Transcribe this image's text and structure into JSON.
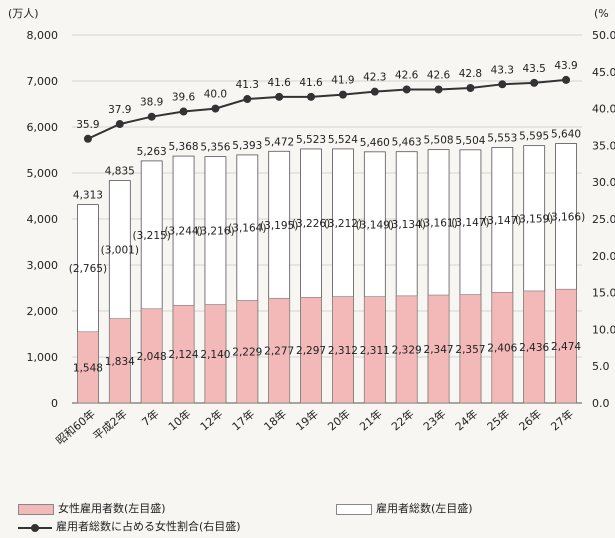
{
  "chart_data": {
    "type": "bar+line",
    "title": "",
    "y_left_unit": "(万人)",
    "y_right_unit": "(%",
    "y_left_ticks": [
      "0",
      "1,000",
      "2,000",
      "3,000",
      "4,000",
      "5,000",
      "6,000",
      "7,000",
      "8,000"
    ],
    "y_right_ticks": [
      "0.0",
      "5.0",
      "10.0",
      "15.0",
      "20.0",
      "25.0",
      "30.0",
      "35.0",
      "40.0",
      "45.0",
      "50.0"
    ],
    "ylim_left": [
      0,
      8000
    ],
    "ylim_right": [
      0,
      50
    ],
    "categories": [
      "昭和60年",
      "平成2年",
      "7年",
      "10年",
      "12年",
      "17年",
      "18年",
      "19年",
      "20年",
      "21年",
      "22年",
      "23年",
      "24年",
      "25年",
      "26年",
      "27年"
    ],
    "series": [
      {
        "name": "女性雇用者数(左目盛)",
        "kind": "bar",
        "color": "#f3b9b8",
        "values": [
          1548,
          1834,
          2048,
          2124,
          2140,
          2229,
          2277,
          2297,
          2312,
          2311,
          2329,
          2347,
          2357,
          2406,
          2436,
          2474
        ],
        "labels": [
          "1,548",
          "1,834",
          "2,048",
          "2,124",
          "2,140",
          "2,229",
          "2,277",
          "2,297",
          "2,312",
          "2,311",
          "2,329",
          "2,347",
          "2,357",
          "2,406",
          "2,436",
          "2,474"
        ]
      },
      {
        "name": "雇用者総数(左目盛)",
        "kind": "bar",
        "color": "#ffffff",
        "values": [
          4313,
          4835,
          5263,
          5368,
          5356,
          5393,
          5472,
          5523,
          5524,
          5460,
          5463,
          5508,
          5504,
          5553,
          5595,
          5640
        ],
        "labels": [
          "4,313",
          "4,835",
          "5,263",
          "5,368",
          "5,356",
          "5,393",
          "5,472",
          "5,523",
          "5,524",
          "5,460",
          "5,463",
          "5,508",
          "5,504",
          "5,553",
          "5,595",
          "5,640"
        ]
      },
      {
        "name": "雇用者総数に占める女性割合(右目盛)",
        "kind": "line",
        "color": "#333333",
        "values": [
          35.9,
          37.9,
          38.9,
          39.6,
          40.0,
          41.3,
          41.6,
          41.6,
          41.9,
          42.3,
          42.6,
          42.6,
          42.8,
          43.3,
          43.5,
          43.9
        ],
        "labels": [
          "35.9",
          "37.9",
          "38.9",
          "39.6",
          "40.0",
          "41.3",
          "41.6",
          "41.6",
          "41.9",
          "42.3",
          "42.6",
          "42.6",
          "42.8",
          "43.3",
          "43.5",
          "43.9"
        ]
      }
    ],
    "male_labels": [
      "(2,765)",
      "(3,001)",
      "(3,215)",
      "(3,244)",
      "(3,216)",
      "(3,164)",
      "(3,195)",
      "(3,226)",
      "(3,212)",
      "(3,149)",
      "(3,134)",
      "(3,161)",
      "(3,147)",
      "(3,147)",
      "(3,159)",
      "(3,166)"
    ],
    "legend": [
      {
        "label": "女性雇用者数(左目盛)",
        "swatch": "female"
      },
      {
        "label": "雇用者総数(左目盛)",
        "swatch": "total"
      },
      {
        "label": "雇用者総数に占める女性割合(右目盛)",
        "swatch": "line"
      }
    ]
  }
}
